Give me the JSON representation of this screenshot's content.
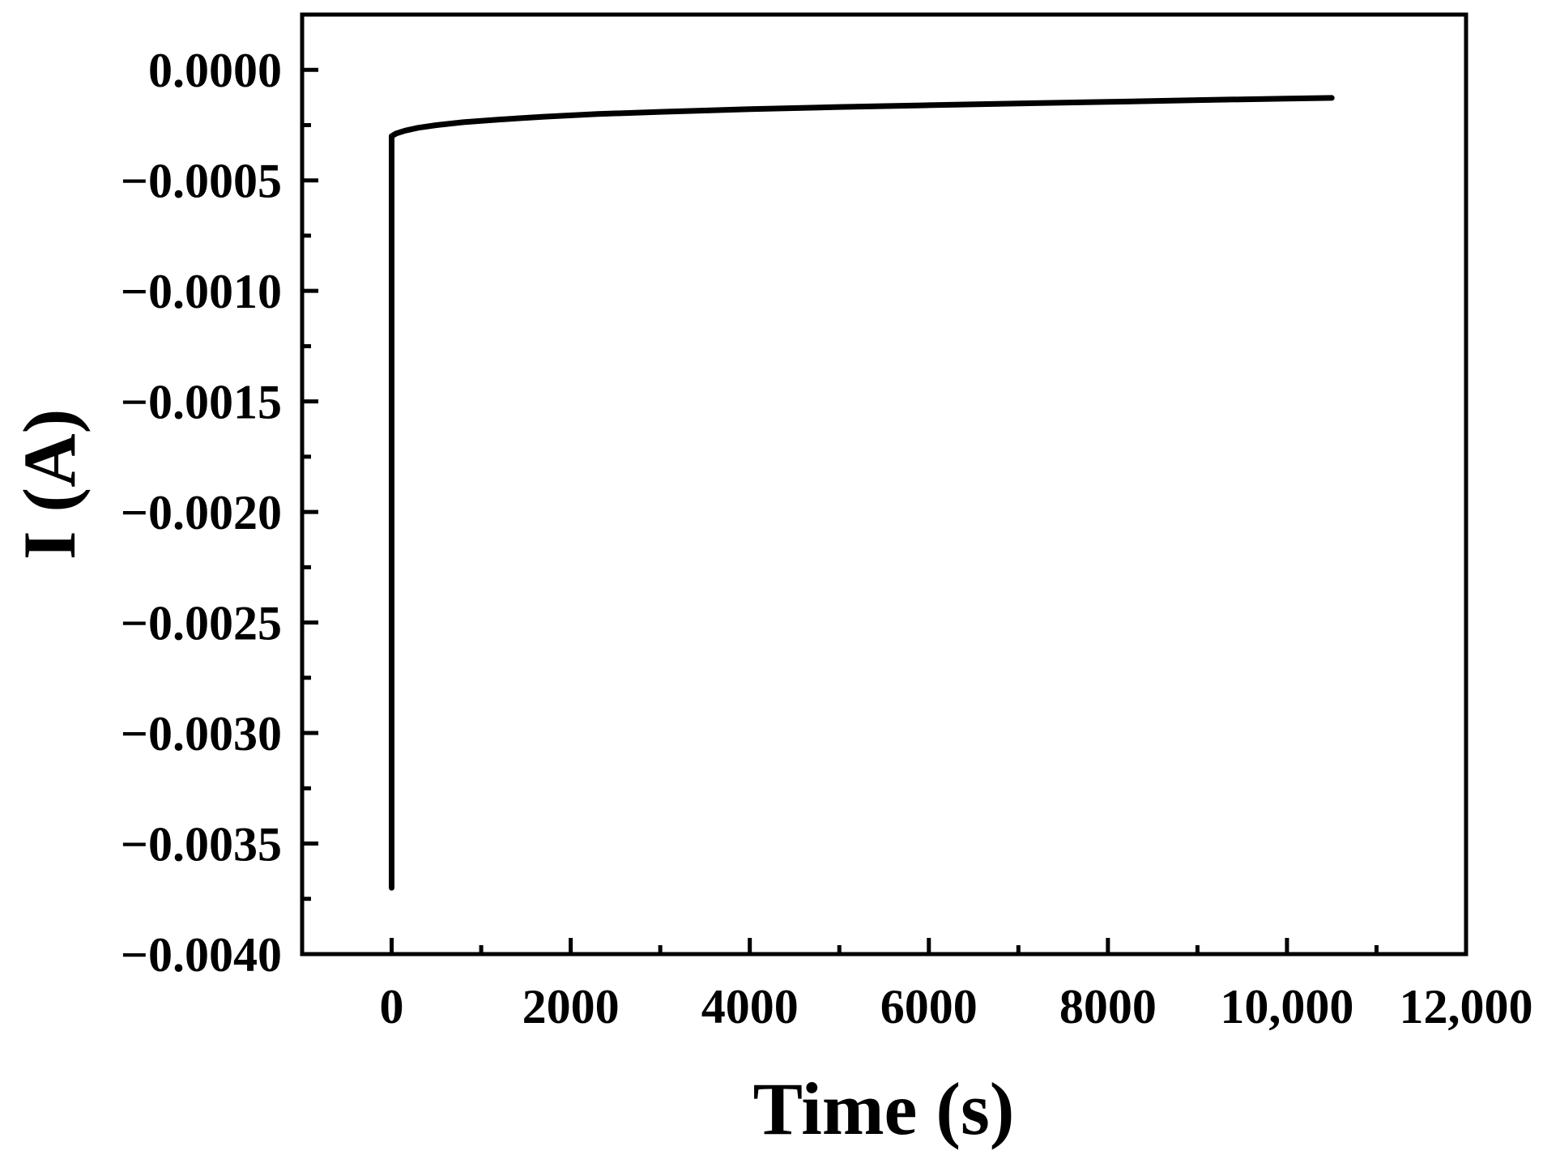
{
  "chart_data": {
    "type": "line",
    "title": "",
    "xlabel": "Time (s)",
    "ylabel": "I (A)",
    "xlim": [
      -1000,
      12000
    ],
    "ylim": [
      -0.004,
      0.00025
    ],
    "x_ticks": [
      0,
      2000,
      4000,
      6000,
      8000,
      10000,
      12000
    ],
    "x_tick_labels": [
      "0",
      "2000",
      "4000",
      "6000",
      "8000",
      "10,000",
      "12,000"
    ],
    "y_ticks": [
      0.0,
      -0.0005,
      -0.001,
      -0.0015,
      -0.002,
      -0.0025,
      -0.003,
      -0.0035,
      -0.004
    ],
    "y_tick_labels": [
      "0.0000",
      "−0.0005",
      "−0.0010",
      "−0.0015",
      "−0.0020",
      "−0.0025",
      "−0.0030",
      "−0.0035",
      "−0.0040"
    ],
    "grid": false,
    "legend": "none",
    "line_color": "#000000",
    "series": [
      {
        "x": [
          0,
          0,
          50,
          150,
          300,
          500,
          800,
          1200,
          1700,
          2300,
          3000,
          4000,
          5000,
          6000,
          7000,
          8000,
          9000,
          10000,
          10500
        ],
        "y": [
          -0.0037,
          -0.0003,
          -0.000288,
          -0.000275,
          -0.000262,
          -0.00025,
          -0.000237,
          -0.000225,
          -0.000212,
          -0.0002,
          -0.00019,
          -0.000178,
          -0.000168,
          -0.00016,
          -0.000152,
          -0.000145,
          -0.000137,
          -0.00013,
          -0.000127
        ]
      }
    ]
  }
}
